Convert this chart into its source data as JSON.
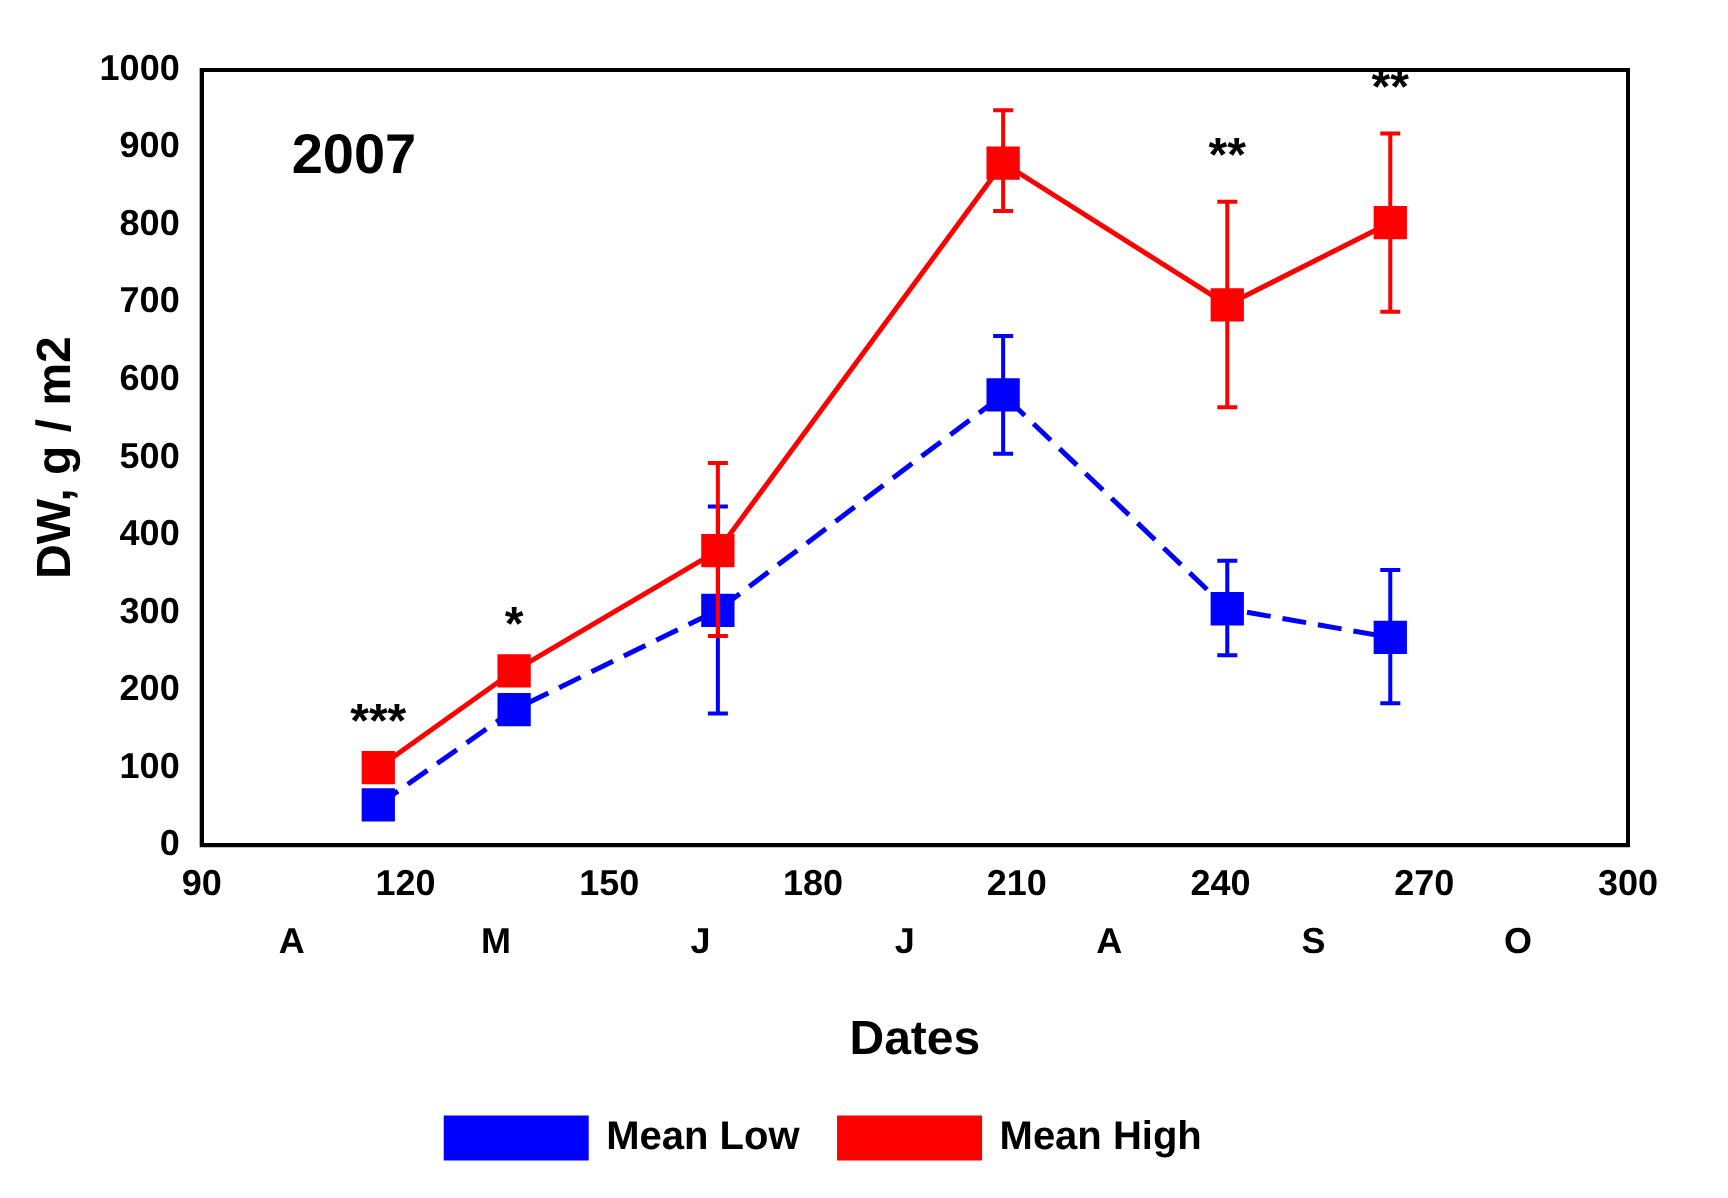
{
  "chart_data": {
    "type": "line",
    "xlabel": "Dates",
    "ylabel": "DW, g / m2",
    "xlim": [
      90,
      300
    ],
    "xticks": [
      90,
      120,
      150,
      180,
      210,
      240,
      270,
      300
    ],
    "ylim": [
      0,
      1000
    ],
    "yticks": [
      0,
      100,
      200,
      300,
      400,
      500,
      600,
      700,
      800,
      900,
      1000
    ],
    "grid": false,
    "legend": "bottom",
    "marker": "square",
    "series": [
      {
        "name": "Mean Low",
        "color": "#0000ff",
        "line_style": "dashed",
        "x": [
          116,
          136,
          166,
          208,
          241,
          265
        ],
        "values": [
          52,
          175,
          303,
          581,
          305,
          268
        ],
        "errors": [
          null,
          null,
          [
            170,
            437
          ],
          [
            505,
            657
          ],
          [
            245,
            367
          ],
          [
            183,
            355
          ]
        ]
      },
      {
        "name": "Mean High",
        "color": "#ff0000",
        "line_style": "solid",
        "x": [
          116,
          136,
          166,
          208,
          241,
          265
        ],
        "values": [
          100,
          225,
          380,
          880,
          697,
          803
        ],
        "errors": [
          null,
          null,
          [
            270,
            493
          ],
          [
            818,
            948
          ],
          [
            565,
            830
          ],
          [
            688,
            918
          ]
        ]
      }
    ],
    "annotations": [
      "2007",
      "A M J J A S O",
      {
        "text": "***",
        "x": 116,
        "y": 100
      },
      {
        "text": "*",
        "x": 136,
        "y": 225
      },
      {
        "text": "**",
        "x": 241,
        "y": 830
      },
      {
        "text": "**",
        "x": 265,
        "y": 918
      }
    ]
  }
}
